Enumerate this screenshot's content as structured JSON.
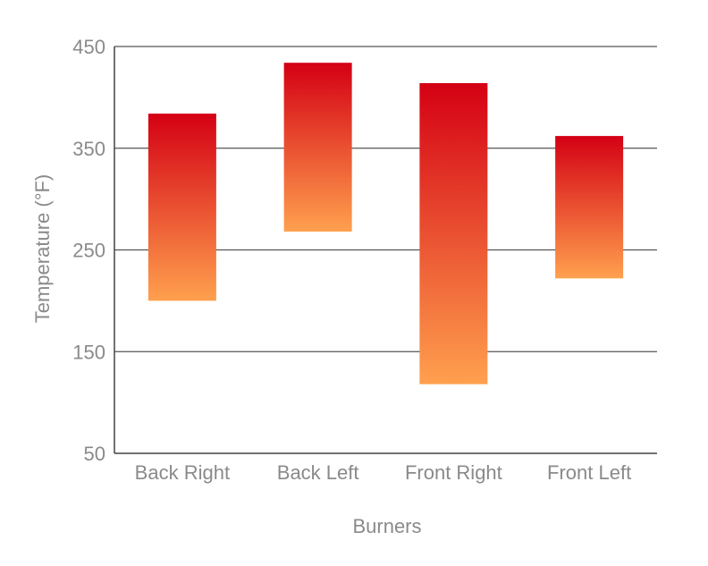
{
  "chart_data": {
    "type": "bar",
    "subtype": "floating-range",
    "title": "",
    "xlabel": "Burners",
    "ylabel": "Temperature (°F)",
    "ylim": [
      50,
      450
    ],
    "yticks": [
      50,
      150,
      250,
      350,
      450
    ],
    "grid": true,
    "legend": "none",
    "categories": [
      "Back Right",
      "Back Left",
      "Front Right",
      "Front Left"
    ],
    "ranges": [
      {
        "low": 200,
        "high": 384
      },
      {
        "low": 268,
        "high": 434
      },
      {
        "low": 118,
        "high": 414
      },
      {
        "low": 222,
        "high": 362
      }
    ],
    "colors": {
      "bar_top": "#d40014",
      "bar_bottom": "#ffa04e",
      "text": "#8a8a8a",
      "grid": "#555555"
    }
  }
}
